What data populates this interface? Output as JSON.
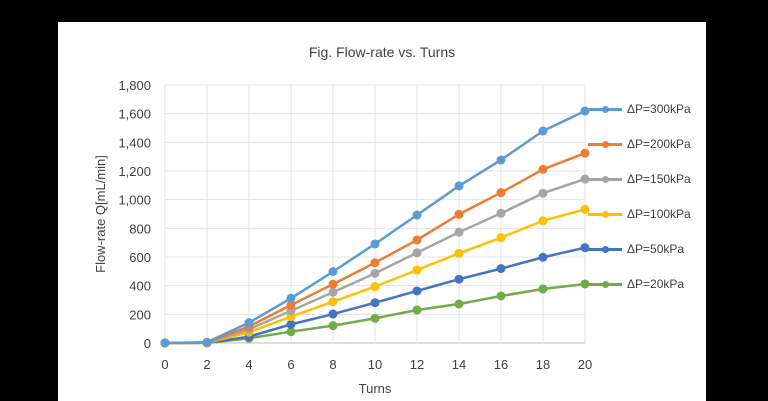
{
  "chart_data": {
    "type": "line",
    "title": "Fig. Flow-rate vs. Turns",
    "xlabel": "Turns",
    "ylabel": "Flow-rate Q[mL/min]",
    "x": [
      0,
      2,
      4,
      6,
      8,
      10,
      12,
      14,
      16,
      18,
      20
    ],
    "xlim": [
      0,
      20
    ],
    "ylim": [
      0,
      1800
    ],
    "x_ticks": [
      "0",
      "2",
      "4",
      "6",
      "8",
      "10",
      "12",
      "14",
      "16",
      "18",
      "20"
    ],
    "y_ticks": [
      "0",
      "200",
      "400",
      "600",
      "800",
      "1,000",
      "1,200",
      "1,400",
      "1,600",
      "1,800"
    ],
    "grid": true,
    "legend_position": "right",
    "series": [
      {
        "name": "ΔP=300kPa",
        "color": "#5B9BD5",
        "values": [
          0,
          5,
          142,
          312,
          498,
          691,
          893,
          1096,
          1277,
          1479,
          1619
        ]
      },
      {
        "name": "ΔP=200kPa",
        "color": "#ED7D31",
        "values": [
          0,
          3,
          115,
          265,
          410,
          560,
          719,
          898,
          1049,
          1212,
          1324
        ]
      },
      {
        "name": "ΔP=150kPa",
        "color": "#A5A5A5",
        "values": [
          0,
          3,
          95,
          225,
          354,
          486,
          630,
          773,
          905,
          1045,
          1144
        ]
      },
      {
        "name": "ΔP=100kPa",
        "color": "#FFC000",
        "values": [
          0,
          2,
          75,
          184,
          288,
          393,
          509,
          626,
          735,
          853,
          933
        ]
      },
      {
        "name": "ΔP=50kPa",
        "color": "#4472C4",
        "values": [
          0,
          2,
          44,
          130,
          202,
          281,
          363,
          445,
          519,
          598,
          665
        ]
      },
      {
        "name": "ΔP=20kPa",
        "color": "#70AD47",
        "values": [
          0,
          0,
          33,
          79,
          121,
          172,
          230,
          272,
          328,
          377,
          412
        ]
      }
    ]
  }
}
